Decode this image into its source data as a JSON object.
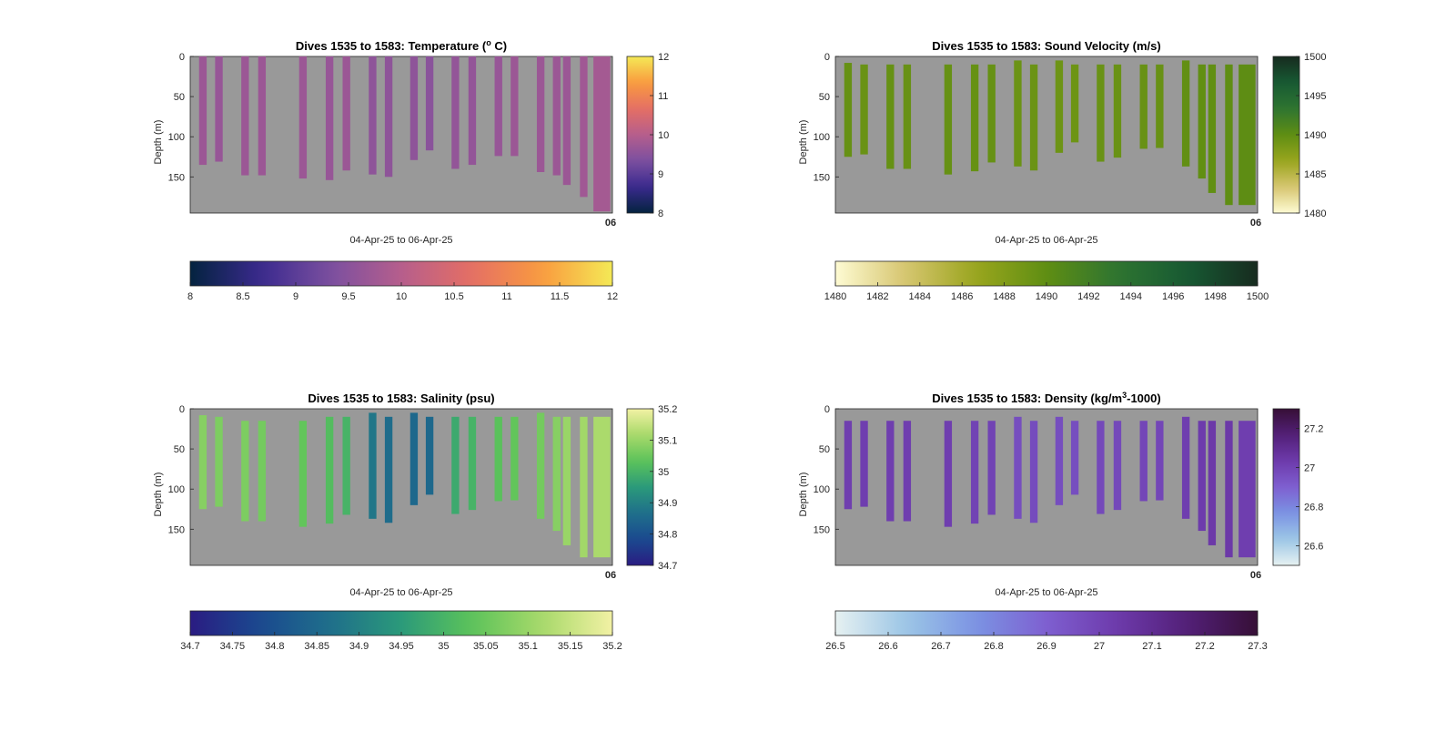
{
  "chart_data": [
    {
      "type": "heatmap",
      "title": "Dives 1535 to 1583: Temperature (",
      "title_sup": "o",
      "title_end": " C)",
      "ylabel": "Depth (m)",
      "xlabel": "04-Apr-25 to 06-Apr-25",
      "x_tick_text": "06",
      "yticks": [
        0,
        50,
        100,
        150
      ],
      "ylim": [
        0,
        195
      ],
      "colormap": "thermal",
      "clim": [
        8,
        12
      ],
      "vcolorbar_ticks": [
        "8",
        "9",
        "10",
        "11",
        "12"
      ],
      "hcolorbar_ticks": [
        "8",
        "8.5",
        "9",
        "9.5",
        "10",
        "10.5",
        "11",
        "11.5",
        "12"
      ],
      "profiles": [
        {
          "start": 0,
          "end": 135,
          "value": 9.7
        },
        {
          "start": 0,
          "end": 131,
          "value": 9.65
        },
        {
          "start": 0,
          "end": 148,
          "value": 9.7
        },
        {
          "start": 0,
          "end": 148,
          "value": 9.7
        },
        {
          "start": 0,
          "end": 152,
          "value": 9.7
        },
        {
          "start": 0,
          "end": 154,
          "value": 9.65
        },
        {
          "start": 0,
          "end": 142,
          "value": 9.7
        },
        {
          "start": 0,
          "end": 147,
          "value": 9.55
        },
        {
          "start": 0,
          "end": 150,
          "value": 9.55
        },
        {
          "start": 0,
          "end": 129,
          "value": 9.55
        },
        {
          "start": 0,
          "end": 117,
          "value": 9.5
        },
        {
          "start": 0,
          "end": 140,
          "value": 9.6
        },
        {
          "start": 0,
          "end": 135,
          "value": 9.6
        },
        {
          "start": 0,
          "end": 124,
          "value": 9.65
        },
        {
          "start": 0,
          "end": 124,
          "value": 9.7
        },
        {
          "start": 0,
          "end": 144,
          "value": 9.7
        },
        {
          "start": 0,
          "end": 148,
          "value": 9.7
        },
        {
          "start": 0,
          "end": 160,
          "value": 9.7
        },
        {
          "start": 0,
          "end": 175,
          "value": 9.75
        },
        {
          "start": 0,
          "end": 193,
          "value": 9.8
        }
      ]
    },
    {
      "type": "heatmap",
      "title": "Dives 1535 to 1583: Sound Velocity (m/s)",
      "ylabel": "Depth (m)",
      "xlabel": "04-Apr-25 to 06-Apr-25",
      "x_tick_text": "06",
      "yticks": [
        0,
        50,
        100,
        150
      ],
      "ylim": [
        0,
        195
      ],
      "colormap": "speed",
      "clim": [
        1480,
        1500
      ],
      "vcolorbar_ticks": [
        "1480",
        "1485",
        "1490",
        "1495",
        "1500"
      ],
      "hcolorbar_ticks": [
        "1480",
        "1482",
        "1484",
        "1486",
        "1488",
        "1490",
        "1492",
        "1494",
        "1496",
        "1498",
        "1500"
      ],
      "profiles": [
        {
          "start": 8,
          "end": 125,
          "value": 1489.6
        },
        {
          "start": 10,
          "end": 122,
          "value": 1489.4
        },
        {
          "start": 10,
          "end": 140,
          "value": 1489.6
        },
        {
          "start": 10,
          "end": 140,
          "value": 1489.5
        },
        {
          "start": 10,
          "end": 147,
          "value": 1489.6
        },
        {
          "start": 10,
          "end": 143,
          "value": 1489.6
        },
        {
          "start": 10,
          "end": 132,
          "value": 1489.6
        },
        {
          "start": 5,
          "end": 137,
          "value": 1489.3
        },
        {
          "start": 10,
          "end": 142,
          "value": 1489.3
        },
        {
          "start": 5,
          "end": 120,
          "value": 1489.2
        },
        {
          "start": 10,
          "end": 107,
          "value": 1489.2
        },
        {
          "start": 10,
          "end": 131,
          "value": 1489.4
        },
        {
          "start": 10,
          "end": 126,
          "value": 1489.4
        },
        {
          "start": 10,
          "end": 115,
          "value": 1489.5
        },
        {
          "start": 10,
          "end": 114,
          "value": 1489.5
        },
        {
          "start": 5,
          "end": 137,
          "value": 1489.8
        },
        {
          "start": 10,
          "end": 152,
          "value": 1489.9
        },
        {
          "start": 10,
          "end": 170,
          "value": 1489.9
        },
        {
          "start": 10,
          "end": 185,
          "value": 1490.0
        },
        {
          "start": 10,
          "end": 185,
          "value": 1490.1
        }
      ]
    },
    {
      "type": "heatmap",
      "title": "Dives 1535 to 1583: Salinity (psu)",
      "ylabel": "Depth (m)",
      "xlabel": "04-Apr-25 to 06-Apr-25",
      "x_tick_text": "06",
      "yticks": [
        0,
        50,
        100,
        150
      ],
      "ylim": [
        0,
        195
      ],
      "colormap": "haline",
      "clim": [
        34.7,
        35.2
      ],
      "vcolorbar_ticks": [
        "34.7",
        "34.8",
        "34.9",
        "35",
        "35.1",
        "35.2"
      ],
      "hcolorbar_ticks": [
        "34.7",
        "34.75",
        "34.8",
        "34.85",
        "34.9",
        "34.95",
        "35",
        "35.05",
        "35.1",
        "35.15",
        "35.2"
      ],
      "profiles": [
        {
          "start": 8,
          "end": 125,
          "value": 35.08
        },
        {
          "start": 10,
          "end": 122,
          "value": 35.07
        },
        {
          "start": 15,
          "end": 140,
          "value": 35.07
        },
        {
          "start": 15,
          "end": 140,
          "value": 35.06
        },
        {
          "start": 15,
          "end": 147,
          "value": 35.04
        },
        {
          "start": 10,
          "end": 143,
          "value": 35.02
        },
        {
          "start": 10,
          "end": 132,
          "value": 35.0
        },
        {
          "start": 5,
          "end": 137,
          "value": 34.88
        },
        {
          "start": 10,
          "end": 142,
          "value": 34.86
        },
        {
          "start": 5,
          "end": 120,
          "value": 34.85
        },
        {
          "start": 10,
          "end": 107,
          "value": 34.85
        },
        {
          "start": 10,
          "end": 131,
          "value": 34.98
        },
        {
          "start": 10,
          "end": 126,
          "value": 35.0
        },
        {
          "start": 10,
          "end": 115,
          "value": 35.03
        },
        {
          "start": 10,
          "end": 114,
          "value": 35.04
        },
        {
          "start": 5,
          "end": 137,
          "value": 35.06
        },
        {
          "start": 10,
          "end": 152,
          "value": 35.08
        },
        {
          "start": 10,
          "end": 170,
          "value": 35.1
        },
        {
          "start": 10,
          "end": 185,
          "value": 35.11
        },
        {
          "start": 10,
          "end": 185,
          "value": 35.12
        }
      ]
    },
    {
      "type": "heatmap",
      "title": "Dives 1535 to 1583: Density (kg/m",
      "title_sup": "3",
      "title_end": "-1000)",
      "ylabel": "Depth (m)",
      "xlabel": "04-Apr-25 to 06-Apr-25",
      "x_tick_text": "06",
      "yticks": [
        0,
        50,
        100,
        150
      ],
      "ylim": [
        0,
        195
      ],
      "colormap": "dense",
      "clim": [
        26.5,
        27.3
      ],
      "vcolorbar_ticks": [
        "26.6",
        "26.8",
        "27",
        "27.2"
      ],
      "hcolorbar_ticks": [
        "26.5",
        "26.6",
        "26.7",
        "26.8",
        "26.9",
        "27",
        "27.1",
        "27.2",
        "27.3"
      ],
      "profiles": [
        {
          "start": 15,
          "end": 125,
          "value": 27.02
        },
        {
          "start": 15,
          "end": 122,
          "value": 27.02
        },
        {
          "start": 15,
          "end": 140,
          "value": 27.02
        },
        {
          "start": 15,
          "end": 140,
          "value": 27.02
        },
        {
          "start": 15,
          "end": 147,
          "value": 27.02
        },
        {
          "start": 15,
          "end": 143,
          "value": 27.0
        },
        {
          "start": 15,
          "end": 132,
          "value": 27.0
        },
        {
          "start": 10,
          "end": 137,
          "value": 26.96
        },
        {
          "start": 15,
          "end": 142,
          "value": 26.97
        },
        {
          "start": 10,
          "end": 120,
          "value": 26.96
        },
        {
          "start": 15,
          "end": 107,
          "value": 26.96
        },
        {
          "start": 15,
          "end": 131,
          "value": 26.98
        },
        {
          "start": 15,
          "end": 126,
          "value": 26.98
        },
        {
          "start": 15,
          "end": 115,
          "value": 26.99
        },
        {
          "start": 15,
          "end": 114,
          "value": 26.99
        },
        {
          "start": 10,
          "end": 137,
          "value": 27.02
        },
        {
          "start": 15,
          "end": 152,
          "value": 27.03
        },
        {
          "start": 15,
          "end": 170,
          "value": 27.04
        },
        {
          "start": 15,
          "end": 185,
          "value": 27.04
        },
        {
          "start": 15,
          "end": 185,
          "value": 27.02
        }
      ]
    }
  ]
}
